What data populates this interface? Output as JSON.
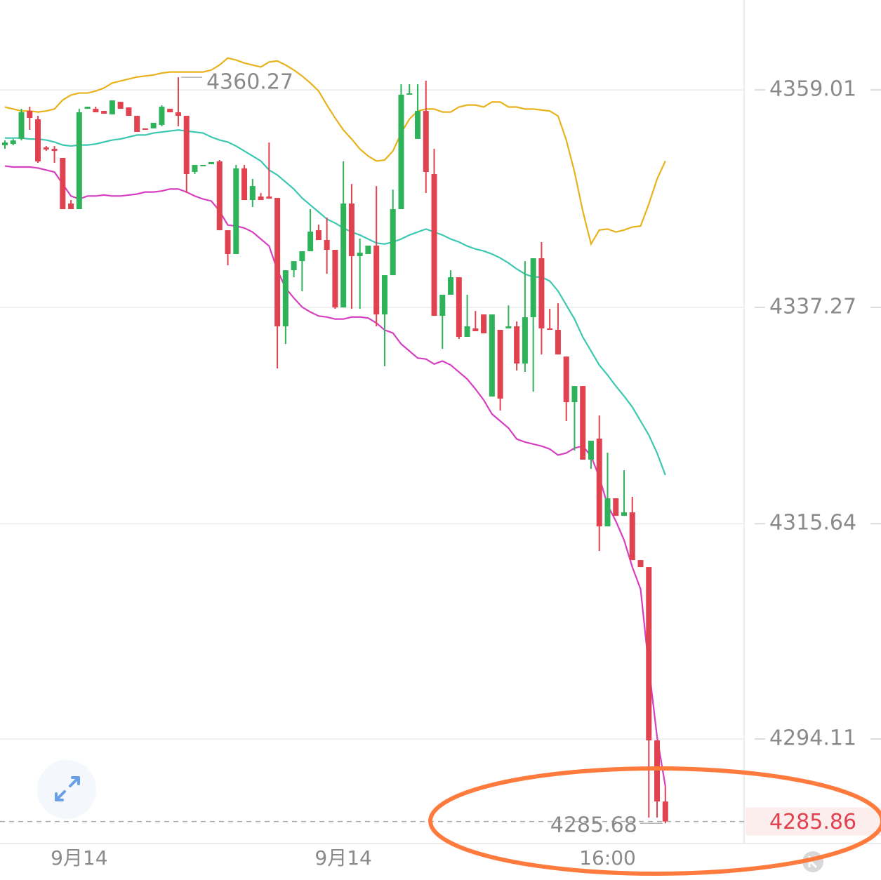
{
  "chart_data": {
    "type": "candlestick",
    "ylim": [
      4283.8,
      4368.0
    ],
    "yticks": [
      4294.11,
      4315.64,
      4337.27,
      4359.01
    ],
    "grid": true,
    "up_color": "#2fb35a",
    "down_color": "#e0424f",
    "categories": [
      null,
      null,
      null,
      null,
      null,
      null,
      null,
      null,
      null,
      "9月14",
      null,
      null,
      null,
      null,
      null,
      null,
      null,
      null,
      null,
      null,
      null,
      null,
      null,
      null,
      null,
      null,
      null,
      null,
      null,
      null,
      null,
      null,
      null,
      null,
      null,
      null,
      null,
      null,
      null,
      null,
      null,
      "9月14",
      null,
      null,
      null,
      null,
      null,
      null,
      null,
      null,
      null,
      null,
      null,
      null,
      null,
      null,
      null,
      null,
      null,
      null,
      null,
      null,
      null,
      null,
      null,
      null,
      null,
      null,
      null,
      null,
      null,
      null,
      null,
      "16:00",
      null,
      null,
      null,
      null,
      null,
      null,
      null
    ],
    "candles": [
      [
        4353.47,
        4353.96,
        4353.12,
        4353.75
      ],
      [
        4353.61,
        4354.11,
        4353.47,
        4353.96
      ],
      [
        4354.11,
        4357.12,
        4353.96,
        4356.77
      ],
      [
        4356.91,
        4357.33,
        4355.02,
        4356.21
      ],
      [
        4356.07,
        4356.42,
        4351.72,
        4351.86
      ],
      [
        4353.26,
        4353.4,
        4352.91,
        4353.05
      ],
      [
        4353.12,
        4353.4,
        4351.72,
        4352.91
      ],
      [
        4352.21,
        4352.21,
        4347.09,
        4347.09
      ],
      [
        4347.65,
        4348.0,
        4347.09,
        4347.09
      ],
      [
        4347.09,
        4357.12,
        4347.09,
        4356.77
      ],
      [
        4357.12,
        4357.33,
        4357.12,
        4357.33
      ],
      [
        4357.12,
        4357.33,
        4356.77,
        4356.77
      ],
      [
        4356.91,
        4356.91,
        4356.63,
        4356.63
      ],
      [
        4356.56,
        4357.96,
        4356.56,
        4357.96
      ],
      [
        4357.82,
        4357.82,
        4357.12,
        4357.12
      ],
      [
        4357.26,
        4357.26,
        4356.42,
        4356.42
      ],
      [
        4356.42,
        4356.42,
        4354.81,
        4354.81
      ],
      [
        4355.16,
        4355.16,
        4355.02,
        4355.02
      ],
      [
        4355.16,
        4355.72,
        4355.16,
        4355.72
      ],
      [
        4355.51,
        4357.47,
        4355.37,
        4357.33
      ],
      [
        4357.12,
        4357.12,
        4356.77,
        4356.77
      ],
      [
        4356.77,
        4360.27,
        4355.37,
        4356.42
      ],
      [
        4356.42,
        4356.42,
        4348.7,
        4350.6
      ],
      [
        4350.81,
        4351.51,
        4350.6,
        4351.51
      ],
      [
        4351.37,
        4351.51,
        4351.37,
        4351.51
      ],
      [
        4351.58,
        4351.79,
        4351.58,
        4351.79
      ],
      [
        4351.86,
        4352.0,
        4344.98,
        4344.98
      ],
      [
        4344.98,
        4344.98,
        4341.47,
        4342.6
      ],
      [
        4342.6,
        4351.51,
        4342.6,
        4351.16
      ],
      [
        4351.16,
        4351.51,
        4348.0,
        4348.0
      ],
      [
        4348.0,
        4350.11,
        4347.3,
        4349.4
      ],
      [
        4348.35,
        4348.7,
        4348.0,
        4348.0
      ],
      [
        4348.35,
        4353.75,
        4348.14,
        4348.14
      ],
      [
        4348.21,
        4348.21,
        4331.16,
        4335.37
      ],
      [
        4335.37,
        4340.98,
        4333.61,
        4340.98
      ],
      [
        4340.98,
        4341.89,
        4340.28,
        4341.89
      ],
      [
        4341.89,
        4342.88,
        4338.88,
        4342.88
      ],
      [
        4342.88,
        4347.09,
        4342.88,
        4344.84
      ],
      [
        4344.98,
        4345.54,
        4344.0,
        4344.0
      ],
      [
        4344.0,
        4346.25,
        4340.63,
        4343.02
      ],
      [
        4343.02,
        4343.02,
        4337.12,
        4337.26
      ],
      [
        4337.26,
        4351.86,
        4337.26,
        4347.65
      ],
      [
        4347.65,
        4349.61,
        4337.12,
        4342.39
      ],
      [
        4342.39,
        4344.14,
        4337.12,
        4342.74
      ],
      [
        4342.6,
        4343.44,
        4342.6,
        4343.44
      ],
      [
        4343.44,
        4349.4,
        4335.37,
        4336.56
      ],
      [
        4336.56,
        4340.49,
        4331.37,
        4340.49
      ],
      [
        4340.49,
        4349.05,
        4340.49,
        4347.09
      ],
      [
        4347.09,
        4359.58,
        4347.09,
        4358.53
      ],
      [
        4358.53,
        4359.58,
        4358.53,
        4358.67
      ],
      [
        4354.11,
        4359.58,
        4354.11,
        4356.91
      ],
      [
        4356.91,
        4359.93,
        4348.7,
        4350.81
      ],
      [
        4350.6,
        4353.12,
        4336.42,
        4336.42
      ],
      [
        4336.42,
        4338.53,
        4333.12,
        4338.53
      ],
      [
        4338.53,
        4340.98,
        4338.53,
        4340.28
      ],
      [
        4340.28,
        4340.28,
        4334.11,
        4334.32
      ],
      [
        4334.32,
        4338.53,
        4334.32,
        4335.37
      ],
      [
        4335.16,
        4336.91,
        4334.88,
        4334.88
      ],
      [
        4336.56,
        4336.56,
        4334.67,
        4334.67
      ],
      [
        4328.35,
        4336.56,
        4328.35,
        4336.56
      ],
      [
        4335.02,
        4335.02,
        4326.95,
        4328.14
      ],
      [
        4335.16,
        4337.47,
        4335.16,
        4335.37
      ],
      [
        4335.37,
        4335.86,
        4330.95,
        4331.65
      ],
      [
        4331.65,
        4341.89,
        4330.81,
        4336.28
      ],
      [
        4336.28,
        4342.18,
        4328.84,
        4342.18
      ],
      [
        4342.18,
        4343.79,
        4332.56,
        4335.16
      ],
      [
        4335.16,
        4337.12,
        4335.02,
        4335.02
      ],
      [
        4335.02,
        4337.68,
        4332.56,
        4332.56
      ],
      [
        4332.35,
        4332.35,
        4325.9,
        4327.79
      ],
      [
        4327.79,
        4329.4,
        4322.95,
        4329.4
      ],
      [
        4329.4,
        4329.4,
        4322.04,
        4322.04
      ],
      [
        4322.04,
        4323.93,
        4321.12,
        4323.93
      ],
      [
        4324.14,
        4326.46,
        4312.91,
        4315.37
      ],
      [
        4315.37,
        4322.74,
        4315.37,
        4318.18
      ],
      [
        4318.18,
        4318.18,
        4316.42,
        4316.42
      ],
      [
        4316.42,
        4320.98,
        4316.42,
        4316.77
      ],
      [
        4316.77,
        4318.32,
        4312.0,
        4312.0
      ],
      [
        4312.0,
        4312.0,
        4311.3,
        4311.3
      ],
      [
        4311.3,
        4311.3,
        4286.25,
        4293.97
      ],
      [
        4293.97,
        4293.97,
        4286.25,
        4287.86
      ],
      [
        4287.86,
        4289.4,
        4285.68,
        4285.86
      ]
    ],
    "bands": [
      {
        "color": "#e8b21c",
        "values": [
          4357.3,
          4357.1,
          4356.9,
          4356.9,
          4356.8,
          4356.9,
          4357.1,
          4358.0,
          4358.5,
          4358.7,
          4358.7,
          4358.9,
          4359.2,
          4359.7,
          4359.9,
          4360.1,
          4360.3,
          4360.4,
          4360.5,
          4360.7,
          4360.8,
          4360.8,
          4360.8,
          4360.8,
          4360.8,
          4361.0,
          4361.5,
          4362.2,
          4362.0,
          4361.7,
          4361.5,
          4361.3,
          4361.8,
          4361.9,
          4361.5,
          4361.0,
          4360.4,
          4359.7,
          4358.9,
          4357.5,
          4356.2,
          4355.0,
          4354.1,
          4353.1,
          4352.4,
          4351.9,
          4352.0,
          4352.9,
          4354.7,
          4356.1,
          4356.9,
          4357.1,
          4357.1,
          4356.8,
          4356.8,
          4357.3,
          4357.5,
          4357.5,
          4357.3,
          4357.8,
          4357.8,
          4357.3,
          4357.3,
          4357.1,
          4357.1,
          4357.0,
          4356.9,
          4356.4,
          4354.0,
          4350.8,
          4346.9,
          4343.6,
          4345.0,
          4345.1,
          4344.8,
          4345.0,
          4345.3,
          4345.4,
          4347.6,
          4350.1,
          4351.9
        ]
      },
      {
        "color": "#3cc7b0",
        "values": [
          4354.2,
          4354.2,
          4354.2,
          4354.1,
          4354.1,
          4354.0,
          4353.8,
          4353.5,
          4353.4,
          4353.5,
          4353.5,
          4353.6,
          4353.8,
          4354.0,
          4354.1,
          4354.3,
          4354.5,
          4354.5,
          4354.7,
          4354.8,
          4354.9,
          4355.0,
          4354.9,
          4354.8,
          4354.7,
          4354.3,
          4354.0,
          4353.8,
          4353.4,
          4352.9,
          4352.4,
          4351.9,
          4351.0,
          4350.5,
          4349.8,
          4349.1,
          4348.2,
          4347.5,
          4346.8,
          4346.1,
          4345.7,
          4345.2,
          4344.8,
          4344.5,
          4344.1,
          4343.7,
          4343.6,
          4343.8,
          4344.1,
          4344.5,
          4344.8,
          4345.1,
          4344.8,
          4344.5,
          4344.1,
          4343.8,
          4343.4,
          4343.1,
          4342.9,
          4342.6,
          4342.2,
          4341.7,
          4341.1,
          4340.6,
          4340.3,
          4340.3,
          4339.9,
          4338.9,
          4337.5,
          4336.1,
          4334.3,
          4332.9,
          4331.5,
          4330.5,
          4329.4,
          4328.4,
          4327.3,
          4325.9,
          4324.5,
          4322.7,
          4320.5
        ]
      },
      {
        "color": "#d63fc0",
        "values": [
          4351.4,
          4351.3,
          4351.3,
          4351.3,
          4351.2,
          4351.0,
          4350.8,
          4349.6,
          4348.4,
          4348.1,
          4348.4,
          4348.4,
          4348.5,
          4348.4,
          4348.4,
          4348.5,
          4348.6,
          4348.8,
          4348.8,
          4348.9,
          4349.1,
          4349.1,
          4348.8,
          4348.4,
          4348.1,
          4347.9,
          4346.9,
          4345.5,
          4345.4,
          4345.2,
          4344.8,
          4344.1,
          4343.4,
          4341.0,
          4339.2,
          4338.2,
          4337.3,
          4336.8,
          4336.4,
          4336.3,
          4336.1,
          4336.1,
          4336.3,
          4336.3,
          4336.2,
          4335.7,
          4335.0,
          4334.7,
          4333.6,
          4332.9,
          4332.2,
          4332.1,
          4331.6,
          4331.9,
          4331.5,
          4330.8,
          4330.1,
          4329.1,
          4328.0,
          4326.6,
          4325.9,
          4325.2,
          4324.1,
          4323.8,
          4323.6,
          4323.4,
          4323.1,
          4322.5,
          4322.7,
          4323.2,
          4323.4,
          4322.4,
          4320.3,
          4317.5,
          4315.9,
          4314.0,
          4311.3,
          4309.1,
          4301.3,
          4294.3,
          4289.4
        ]
      }
    ]
  }
}
